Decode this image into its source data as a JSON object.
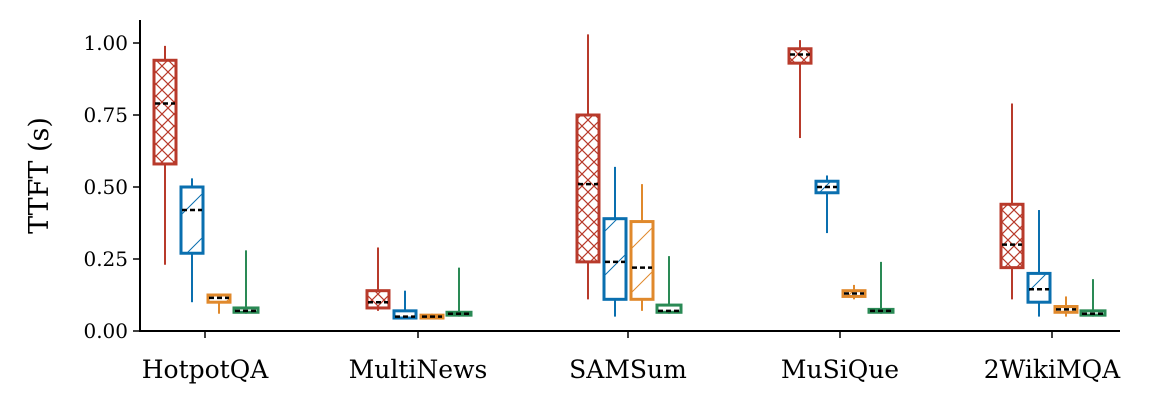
{
  "chart_data": {
    "type": "box",
    "ylabel": "TTFT (s)",
    "ylim": [
      0,
      1.08
    ],
    "yticks": [
      "0.00",
      "0.25",
      "0.50",
      "0.75",
      "1.00"
    ],
    "categories": [
      "HotpotQA",
      "MultiNews",
      "SAMSum",
      "MuSiQue",
      "2WikiMQA"
    ],
    "series": [
      {
        "color": "#b83a2b",
        "hatch": "cross",
        "boxes": [
          {
            "min": 0.23,
            "q1": 0.58,
            "median": 0.79,
            "q3": 0.94,
            "max": 0.99
          },
          {
            "min": 0.07,
            "q1": 0.08,
            "median": 0.1,
            "q3": 0.14,
            "max": 0.29
          },
          {
            "min": 0.11,
            "q1": 0.24,
            "median": 0.51,
            "q3": 0.75,
            "max": 1.03
          },
          {
            "min": 0.67,
            "q1": 0.93,
            "median": 0.96,
            "q3": 0.98,
            "max": 1.01
          },
          {
            "min": 0.11,
            "q1": 0.22,
            "median": 0.3,
            "q3": 0.44,
            "max": 0.79
          }
        ]
      },
      {
        "color": "#0a6faf",
        "hatch": "diagonal",
        "boxes": [
          {
            "min": 0.1,
            "q1": 0.27,
            "median": 0.42,
            "q3": 0.5,
            "max": 0.53
          },
          {
            "min": 0.04,
            "q1": 0.045,
            "median": 0.05,
            "q3": 0.07,
            "max": 0.14
          },
          {
            "min": 0.05,
            "q1": 0.11,
            "median": 0.24,
            "q3": 0.39,
            "max": 0.57
          },
          {
            "min": 0.34,
            "q1": 0.48,
            "median": 0.5,
            "q3": 0.52,
            "max": 0.54
          },
          {
            "min": 0.05,
            "q1": 0.1,
            "median": 0.145,
            "q3": 0.2,
            "max": 0.42
          }
        ]
      },
      {
        "color": "#e0892c",
        "hatch": "diagonal",
        "boxes": [
          {
            "min": 0.06,
            "q1": 0.1,
            "median": 0.115,
            "q3": 0.125,
            "max": 0.13
          },
          {
            "min": 0.04,
            "q1": 0.045,
            "median": 0.05,
            "q3": 0.055,
            "max": 0.06
          },
          {
            "min": 0.07,
            "q1": 0.11,
            "median": 0.22,
            "q3": 0.38,
            "max": 0.51
          },
          {
            "min": 0.11,
            "q1": 0.12,
            "median": 0.13,
            "q3": 0.14,
            "max": 0.16
          },
          {
            "min": 0.05,
            "q1": 0.065,
            "median": 0.075,
            "q3": 0.085,
            "max": 0.12
          }
        ]
      },
      {
        "color": "#2a8a55",
        "hatch": "none",
        "boxes": [
          {
            "min": 0.06,
            "q1": 0.065,
            "median": 0.07,
            "q3": 0.08,
            "max": 0.28
          },
          {
            "min": 0.05,
            "q1": 0.055,
            "median": 0.06,
            "q3": 0.065,
            "max": 0.22
          },
          {
            "min": 0.06,
            "q1": 0.065,
            "median": 0.07,
            "q3": 0.09,
            "max": 0.26
          },
          {
            "min": 0.06,
            "q1": 0.065,
            "median": 0.07,
            "q3": 0.075,
            "max": 0.24
          },
          {
            "min": 0.05,
            "q1": 0.055,
            "median": 0.06,
            "q3": 0.07,
            "max": 0.18
          }
        ]
      }
    ],
    "median_color": "#000000",
    "grid": false,
    "legend": "none"
  }
}
